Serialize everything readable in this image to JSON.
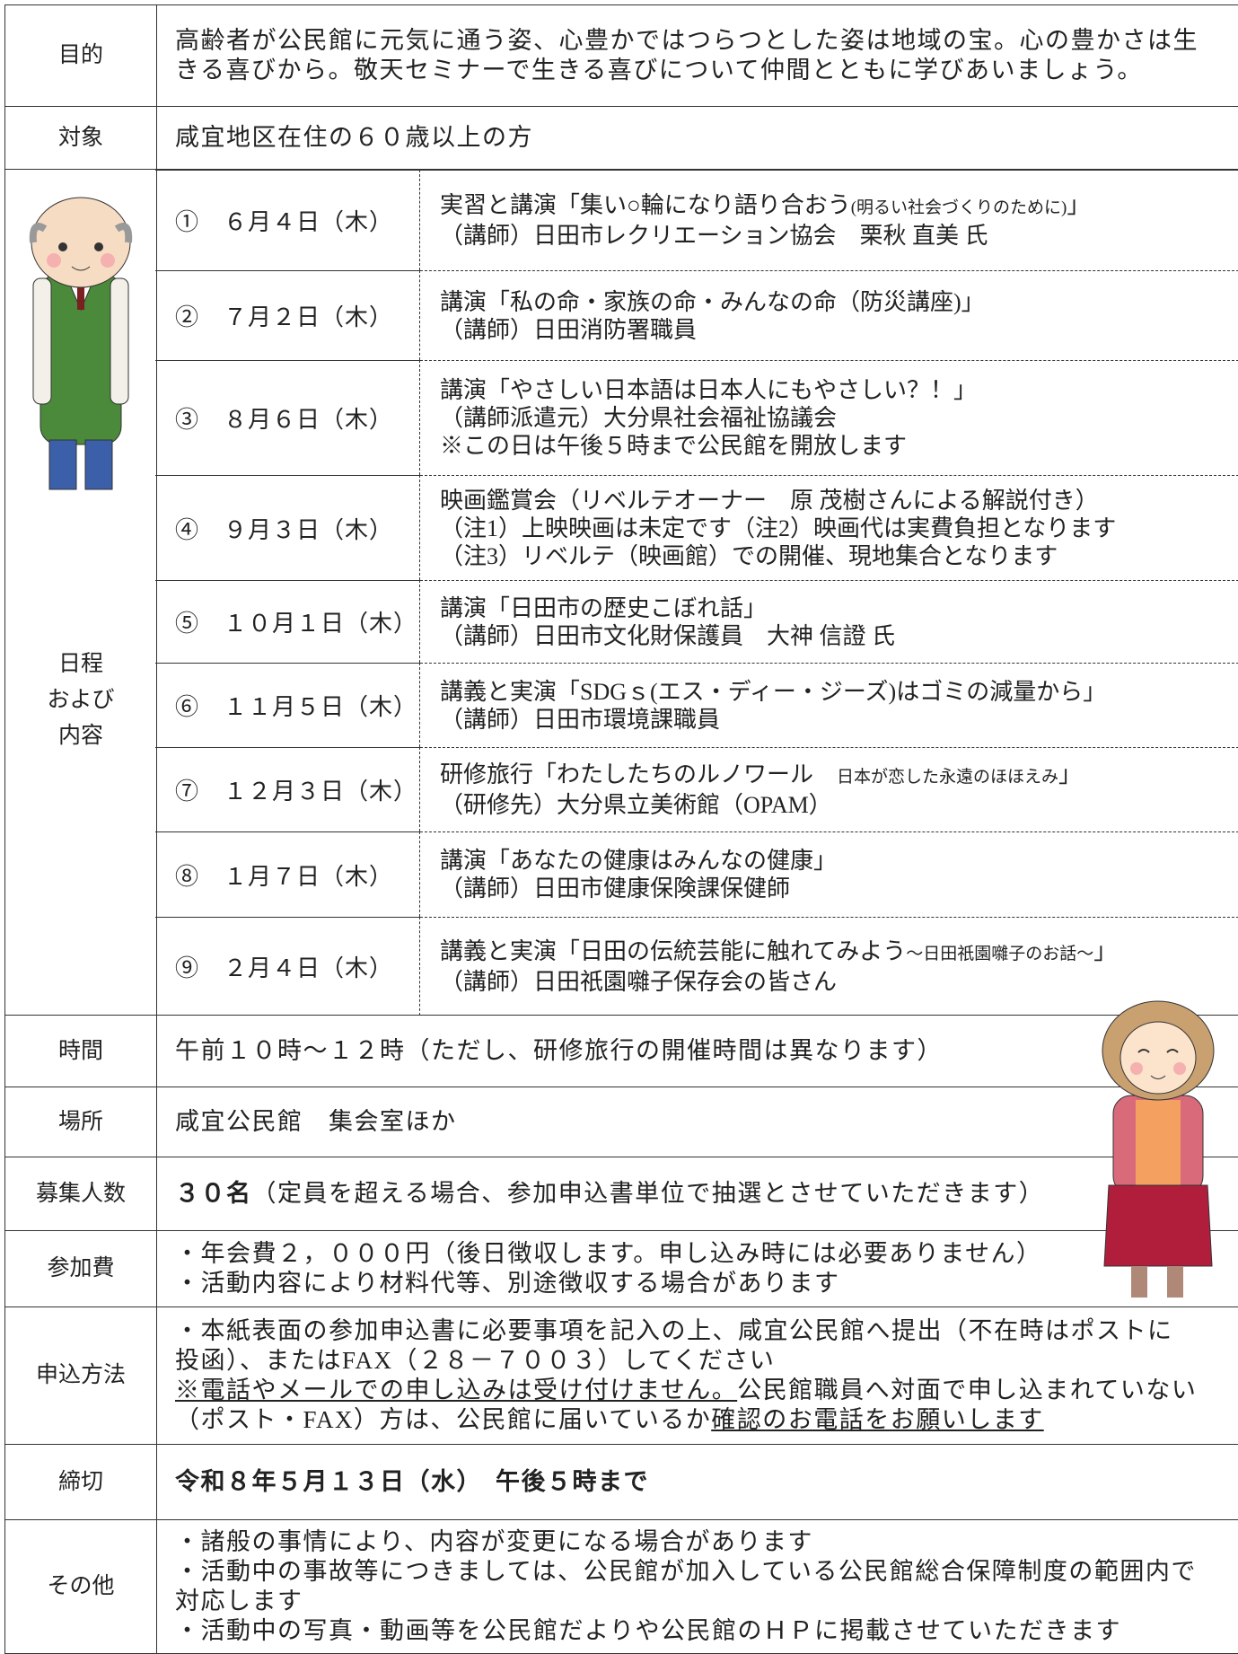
{
  "rows": [
    {
      "label": "目的",
      "lines": [
        "高齢者が公民館に元気に通う姿、心豊かではつらつとした姿は地域の宝。心の豊かさは生",
        "きる喜びから。敬天セミナーで生きる喜びについて仲間とともに学びあいましょう。"
      ]
    },
    {
      "label": "対象",
      "lines": [
        "咸宜地区在住の６０歳以上の方"
      ]
    }
  ],
  "schedule": {
    "label": [
      "日程",
      "および",
      "内容"
    ],
    "items": [
      {
        "date": "①　６月４日（木）",
        "lines": [
          [
            "実習と講演「集い○輪になり語り合おう",
            {
              "text": "(明るい社会づくりのために)",
              "small": true
            },
            "」"
          ],
          [
            "（講師）日田市レクリエーション協会　栗秋 直美 氏"
          ]
        ]
      },
      {
        "date": "②　７月２日（木）",
        "lines": [
          [
            "講演「私の命・家族の命・みんなの命（防災講座)」"
          ],
          [
            "（講師）日田消防署職員"
          ]
        ]
      },
      {
        "date": "③　８月６日（木）",
        "lines": [
          [
            "講演「やさしい日本語は日本人にもやさしい？！」"
          ],
          [
            "（講師派遣元）大分県社会福祉協議会"
          ],
          [
            "※この日は午後５時まで公民館を開放します"
          ]
        ]
      },
      {
        "date": "④　９月３日（木）",
        "lines": [
          [
            "映画鑑賞会（リベルテオーナー　原 茂樹さんによる解説付き）"
          ],
          [
            "（注1）上映映画は未定です（注2）映画代は実費負担となります"
          ],
          [
            "（注3）リベルテ（映画館）での開催、現地集合となります"
          ]
        ]
      },
      {
        "date": "⑤　１０月１日（木）",
        "lines": [
          [
            "講演「日田市の歴史こぼれ話」"
          ],
          [
            "（講師）日田市文化財保護員　大神 信證 氏"
          ]
        ]
      },
      {
        "date": "⑥　１１月５日（木）",
        "lines": [
          [
            "講義と実演「SDGｓ(エス・ディー・ジーズ)はゴミの減量から」"
          ],
          [
            "（講師）日田市環境課職員"
          ]
        ]
      },
      {
        "date": "⑦　１２月３日（木）",
        "lines": [
          [
            "研修旅行「わたしたちのルノワール　",
            {
              "text": "日本が恋した永遠のほほえみ",
              "small": true
            },
            "」"
          ],
          [
            "（研修先）大分県立美術館（OPAM）"
          ]
        ]
      },
      {
        "date": "⑧　１月７日（木）",
        "lines": [
          [
            "講演「あなたの健康はみんなの健康」"
          ],
          [
            "（講師）日田市健康保険課保健師"
          ]
        ]
      },
      {
        "date": "⑨　２月４日（木）",
        "lines": [
          [
            "講義と実演「日田の伝統芸能に触れてみよう",
            {
              "text": "～日田祇園囃子のお話～",
              "small": true
            },
            "」"
          ],
          [
            "（講師）日田祇園囃子保存会の皆さん"
          ]
        ]
      }
    ]
  },
  "rows_after": [
    {
      "label": "時間",
      "lines": [
        "午前１０時～１２時（ただし、研修旅行の開催時間は異なります）"
      ]
    },
    {
      "label": "場所",
      "lines": [
        "咸宜公民館　集会室ほか"
      ]
    },
    {
      "label": "募集人数",
      "lines": [
        [
          {
            "text": "３０名",
            "bold": true
          },
          "（定員を超える場合、参加申込書単位で抽選とさせていただきます）"
        ]
      ]
    },
    {
      "label": "参加費",
      "lines": [
        "・年会費２，０００円（後日徴収します。申し込み時には必要ありません）",
        "・活動内容により材料代等、別途徴収する場合があります"
      ]
    },
    {
      "label": "申込方法",
      "lines": [
        "・本紙表面の参加申込書に必要事項を記入の上、咸宜公民館へ提出（不在時はポストに",
        "投函）、またはFAX（２８－７００３）してください",
        [
          {
            "text": "※電話やメールでの申し込みは受け付けません。",
            "underline": true
          },
          "公民館職員へ対面で申し込まれていない"
        ],
        [
          "（ポスト・FAX）方は、公民館に届いているか",
          {
            "text": "確認のお電話をお願いします",
            "underline": true
          }
        ]
      ]
    },
    {
      "label": "締切",
      "lines": [
        [
          {
            "text": "令和８年５月１３日（水）　午後５時まで",
            "bold": true
          }
        ]
      ]
    },
    {
      "label": "その他",
      "lines": [
        "・諸般の事情により、内容が変更になる場合があります",
        "・活動中の事故等につきましては、公民館が加入している公民館総合保障制度の範囲内で",
        "対応します",
        "・活動中の写真・動画等を公民館だよりや公民館のＨＰに掲載させていただきます"
      ]
    }
  ]
}
